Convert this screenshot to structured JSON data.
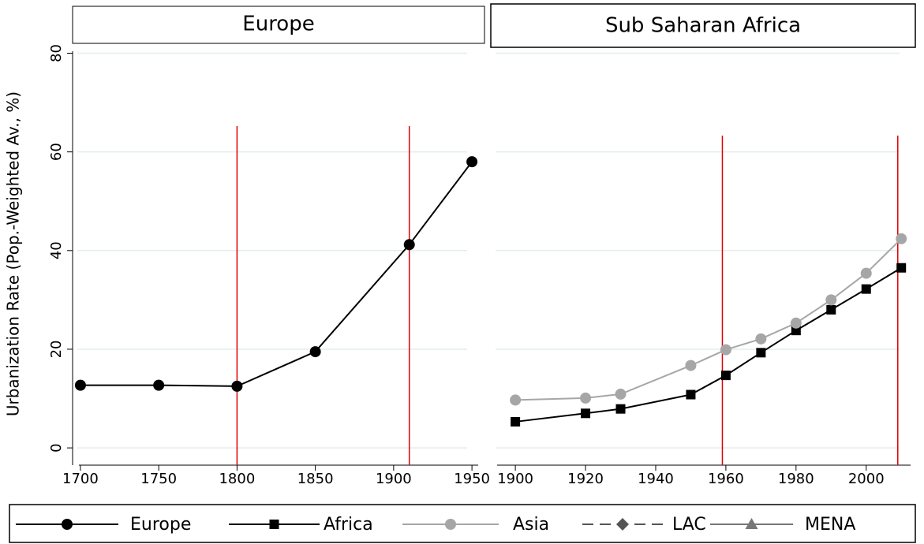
{
  "chart_data": [
    {
      "type": "line",
      "title": "Europe",
      "y_label": "Urbanization Rate (Pop.-Weighted Av., %)",
      "x": [
        1700,
        1750,
        1800,
        1850,
        1910,
        1950
      ],
      "series": [
        {
          "name": "Europe",
          "color": "#000000",
          "marker": "circle",
          "dash": false,
          "values": [
            12.7,
            12.7,
            12.5,
            19.5,
            41.2,
            58
          ]
        }
      ],
      "xlim": [
        1695,
        1957
      ],
      "xticks": [
        1700,
        1750,
        1800,
        1850,
        1900,
        1950
      ],
      "ylim": [
        -3.5,
        82
      ],
      "yticks": [
        0,
        20,
        40,
        60,
        80
      ],
      "grid": true,
      "vlines": [
        1800,
        1910
      ],
      "vline_color": "#e00000"
    },
    {
      "type": "line",
      "title": "Sub Saharan Africa",
      "x": [
        1900,
        1920,
        1930,
        1950,
        1960,
        1970,
        1980,
        1990,
        2000,
        2010
      ],
      "series": [
        {
          "name": "Africa",
          "color": "#000000",
          "marker": "square",
          "dash": false,
          "values": [
            5.3,
            7,
            7.9,
            10.8,
            14.7,
            19.3,
            23.8,
            28,
            32.2,
            36.5
          ]
        },
        {
          "name": "Asia",
          "color": "#a6a6a6",
          "marker": "circle",
          "dash": false,
          "values": [
            9.7,
            10.1,
            10.9,
            16.7,
            19.9,
            22.1,
            25.3,
            30,
            35.4,
            42.4
          ]
        },
        {
          "name": "LAC",
          "color": "#555555",
          "marker": "diamond",
          "dash": true,
          "values": [
            null,
            null,
            null,
            null,
            null,
            null,
            null,
            null,
            null,
            null
          ]
        },
        {
          "name": "MENA",
          "color": "#777777",
          "marker": "triangle",
          "dash": false,
          "values": [
            null,
            null,
            null,
            null,
            null,
            null,
            null,
            null,
            null,
            null
          ]
        }
      ],
      "xlim": [
        1893,
        2014
      ],
      "xticks": [
        1900,
        1920,
        1940,
        1960,
        1980,
        2000
      ],
      "ylim": [
        -3.5,
        82
      ],
      "yticks": [
        0,
        20,
        40,
        60,
        80
      ],
      "grid": true,
      "vlines": [
        1959,
        2009
      ],
      "vline_color": "#e00000"
    }
  ]
}
